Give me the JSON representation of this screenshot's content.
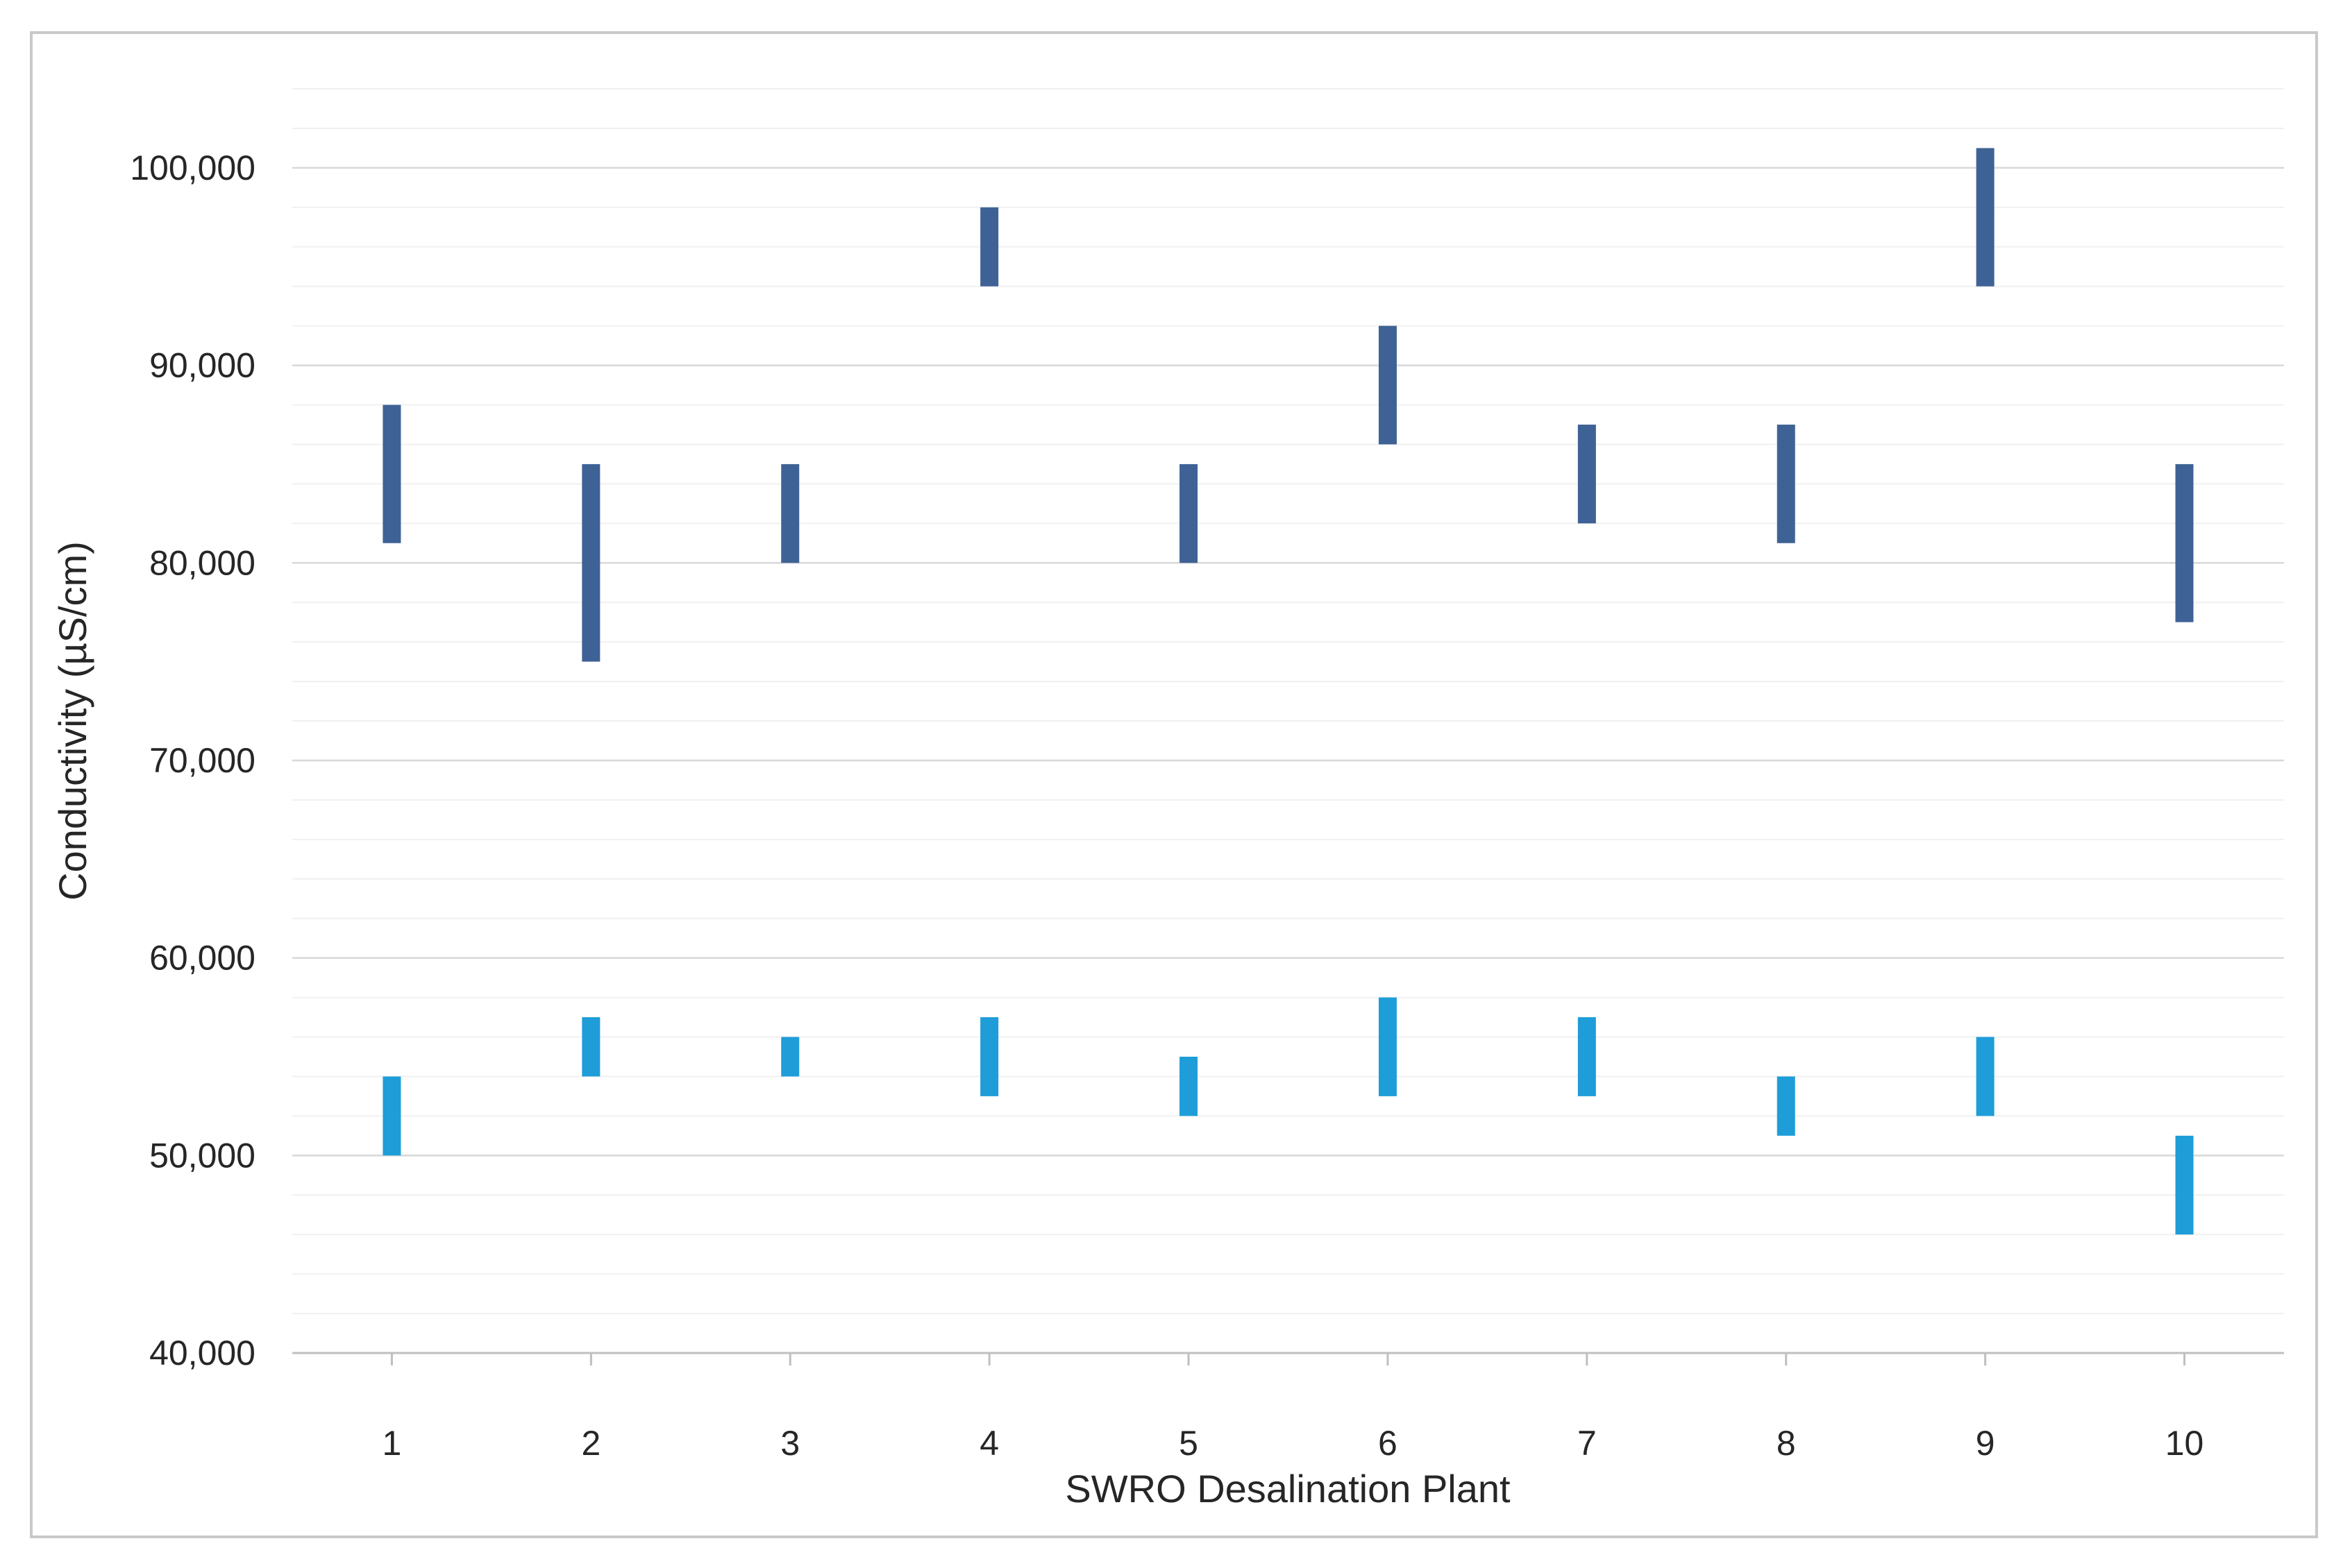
{
  "chart_data": {
    "type": "bar",
    "subtype": "floating-range-columns",
    "title": "",
    "xlabel": "SWRO Desalination Plant",
    "ylabel": "Conductivity (µS/cm)",
    "categories": [
      "1",
      "2",
      "3",
      "4",
      "5",
      "6",
      "7",
      "8",
      "9",
      "10"
    ],
    "ylim": [
      40000,
      104000
    ],
    "y_major_tick_interval": 10000,
    "y_minor_gridline_interval": 2000,
    "y_tick_labels": [
      {
        "value": 40000,
        "label": "40,000"
      },
      {
        "value": 50000,
        "label": "50,000"
      },
      {
        "value": 60000,
        "label": "60,000"
      },
      {
        "value": 70000,
        "label": "70,000"
      },
      {
        "value": 80000,
        "label": "80,000"
      },
      {
        "value": 90000,
        "label": "90,000"
      },
      {
        "value": 100000,
        "label": "100,000"
      }
    ],
    "grid": {
      "major_color": "#D8D8D8",
      "minor_color": "#F0F0F0",
      "axis_line_color": "#BFBFBF",
      "frame_color": "#C9C9C9"
    },
    "legend": "none",
    "series": [
      {
        "name": "dark-blue-upper-range",
        "color": "#3E6295",
        "ranges": [
          [
            81000,
            88000
          ],
          [
            75000,
            85000
          ],
          [
            80000,
            85000
          ],
          [
            94000,
            98000
          ],
          [
            80000,
            85000
          ],
          [
            86000,
            92000
          ],
          [
            82000,
            87000
          ],
          [
            81000,
            87000
          ],
          [
            94000,
            101000
          ],
          [
            77000,
            85000
          ]
        ]
      },
      {
        "name": "light-blue-lower-range",
        "color": "#1E9DD8",
        "ranges": [
          [
            50000,
            54000
          ],
          [
            54000,
            57000
          ],
          [
            54000,
            56000
          ],
          [
            53000,
            57000
          ],
          [
            52000,
            55000
          ],
          [
            53000,
            58000
          ],
          [
            53000,
            57000
          ],
          [
            51000,
            54000
          ],
          [
            52000,
            56000
          ],
          [
            46000,
            51000
          ]
        ]
      }
    ]
  }
}
